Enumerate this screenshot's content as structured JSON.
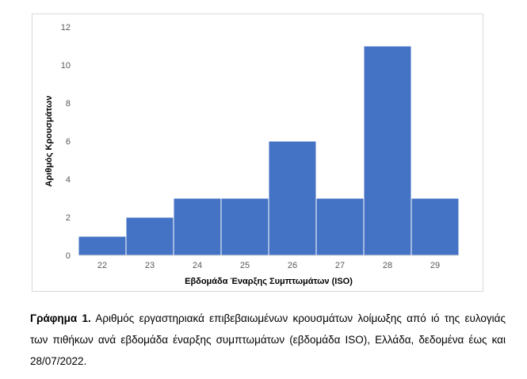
{
  "chart_data": {
    "type": "bar",
    "categories": [
      "22",
      "23",
      "24",
      "25",
      "26",
      "27",
      "28",
      "29"
    ],
    "values": [
      1,
      2,
      3,
      3,
      6,
      3,
      11,
      3
    ],
    "xlabel": "Εβδομάδα Έναρξης Συμπτωμάτων (ISO)",
    "ylabel": "Αριθμός Κρουσμάτων",
    "ylim": [
      0,
      12
    ],
    "yticks": [
      0,
      2,
      4,
      6,
      8,
      10,
      12
    ],
    "grid": false,
    "bar_color": "#4472C4",
    "bar_gap": 0
  },
  "caption": {
    "label": "Γράφημα 1.",
    "text": "Αριθμός εργαστηριακά επιβεβαιωμένων κρουσμάτων λοίμωξης από ιό της ευλογιάς των πιθήκων ανά εβδομάδα έναρξης συμπτωμάτων (εβδομάδα ISO), Ελλάδα, δεδομένα έως και 28/07/2022."
  }
}
